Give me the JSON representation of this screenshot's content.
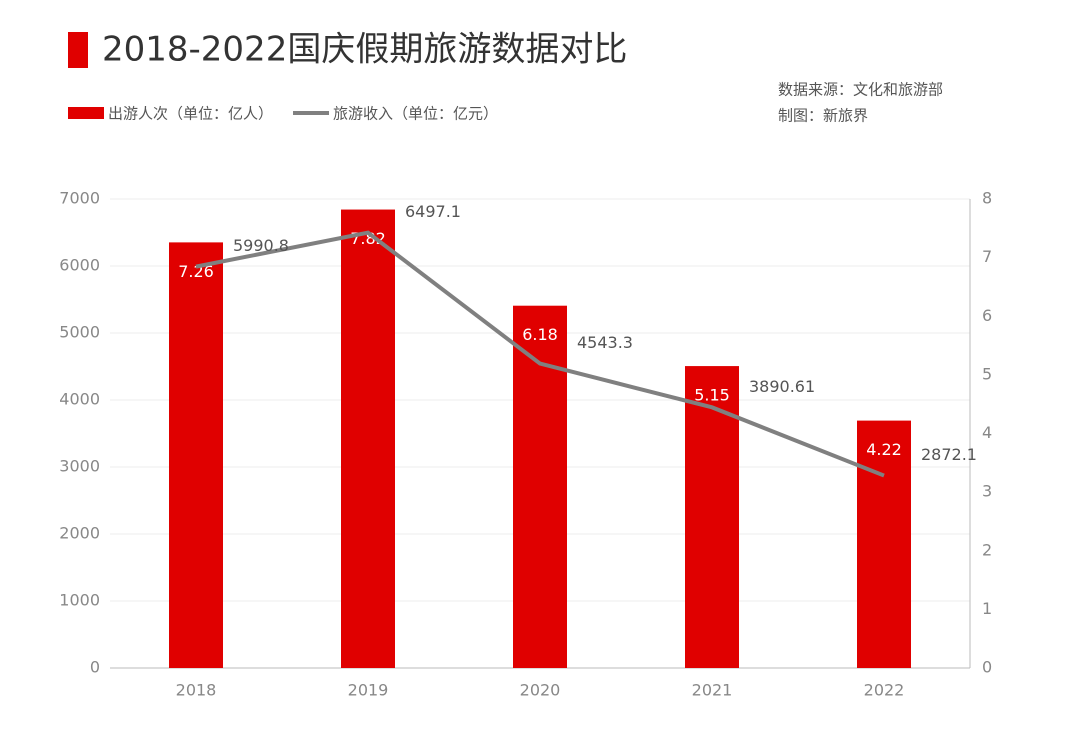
{
  "chart_data": {
    "type": "combo",
    "title": "2018-2022国庆假期旅游数据对比",
    "source": "数据来源：文化和旅游部",
    "credit": "制图：新旅界",
    "categories": [
      "2018",
      "2019",
      "2020",
      "2021",
      "2022"
    ],
    "series": [
      {
        "name": "出游人次（单位：亿人）",
        "type": "bar",
        "axis": "y2",
        "color": "#e00000",
        "values": [
          7.26,
          7.82,
          6.18,
          5.15,
          4.22
        ]
      },
      {
        "name": "旅游收入（单位：亿元）",
        "type": "line",
        "axis": "y",
        "color": "#808080",
        "values": [
          5990.8,
          6497.1,
          4543.3,
          3890.61,
          2872.1
        ]
      }
    ],
    "ylim": [
      0,
      7000
    ],
    "yticks": [
      0,
      1000,
      2000,
      3000,
      4000,
      5000,
      6000,
      7000
    ],
    "y2lim": [
      0,
      8
    ],
    "y2ticks": [
      0,
      1,
      2,
      3,
      4,
      5,
      6,
      7,
      8
    ],
    "grid": true
  }
}
